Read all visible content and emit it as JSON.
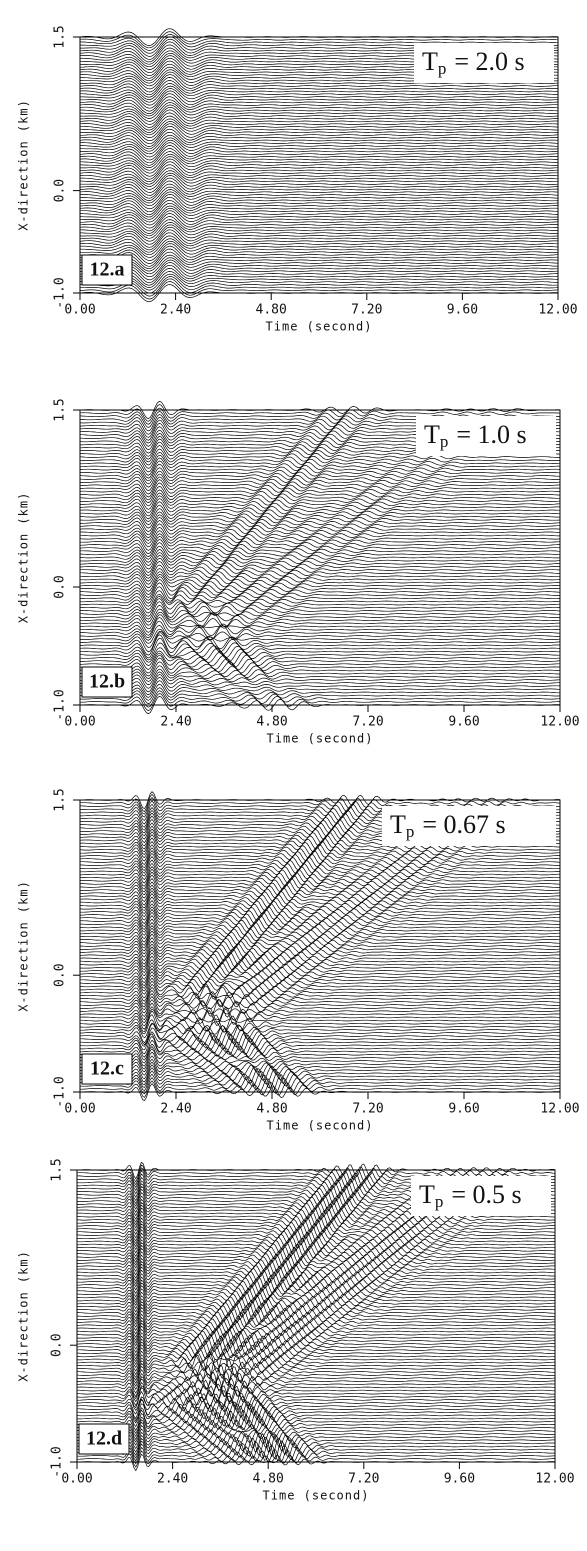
{
  "chart_data": [
    {
      "type": "seismogram",
      "panel_label": "12.a",
      "annotation_symbol": "T",
      "annotation_subscript": "p",
      "annotation_value": "= 2.0 s",
      "xlabel": "Time (second)",
      "ylabel": "X-direction (km)",
      "xlim": [
        0,
        12
      ],
      "ylim": [
        -1.0,
        1.5
      ],
      "xticks": [
        {
          "value": 0,
          "label": "0.00"
        },
        {
          "value": 2.4,
          "label": "2.40"
        },
        {
          "value": 4.8,
          "label": "4.80"
        },
        {
          "value": 7.2,
          "label": "7.20"
        },
        {
          "value": 9.6,
          "label": "9.60"
        },
        {
          "value": 12,
          "label": "12.00"
        }
      ],
      "yticks": [
        {
          "value": -1.0,
          "label": "-1.0"
        },
        {
          "value": 0,
          "label": "0.0"
        },
        1.5
      ]
    },
    {
      "type": "seismogram",
      "panel_label": "12.b",
      "annotation_symbol": "T",
      "annotation_subscript": "p",
      "annotation_value": "= 1.0 s",
      "xlabel": "Time (second)",
      "ylabel": "X-direction (km)",
      "xlim": [
        0,
        12
      ],
      "ylim": [
        -1.0,
        1.5
      ],
      "xticks": [
        {
          "value": 0,
          "label": "0.00"
        },
        {
          "value": 2.4,
          "label": "2.40"
        },
        {
          "value": 4.8,
          "label": "4.80"
        },
        {
          "value": 7.2,
          "label": "7.20"
        },
        {
          "value": 9.6,
          "label": "9.60"
        },
        {
          "value": 12,
          "label": "12.00"
        }
      ],
      "yticks": [
        {
          "value": -1.0,
          "label": "-1.0"
        },
        {
          "value": 0,
          "label": "0.0"
        },
        1.5
      ]
    },
    {
      "type": "seismogram",
      "panel_label": "12.c",
      "annotation_symbol": "T",
      "annotation_subscript": "p",
      "annotation_value": "= 0.67 s",
      "xlabel": "Time (second)",
      "ylabel": "X-direction (km)",
      "xlim": [
        0,
        12
      ],
      "ylim": [
        -1.0,
        1.5
      ],
      "xticks": [
        {
          "value": 0,
          "label": "0.00"
        },
        {
          "value": 2.4,
          "label": "2.40"
        },
        {
          "value": 4.8,
          "label": "4.80"
        },
        {
          "value": 7.2,
          "label": "7.20"
        },
        {
          "value": 9.6,
          "label": "9.60"
        },
        {
          "value": 12,
          "label": "12.00"
        }
      ],
      "yticks": [
        {
          "value": -1.0,
          "label": "-1.0"
        },
        {
          "value": 0,
          "label": "0.0"
        },
        1.5
      ]
    },
    {
      "type": "seismogram",
      "panel_label": "12.d",
      "annotation_symbol": "T",
      "annotation_subscript": "p",
      "annotation_value": "= 0.5 s",
      "xlabel": "Time (second)",
      "ylabel": "X-direction (km)",
      "xlim": [
        0,
        12
      ],
      "ylim": [
        -1.0,
        1.5
      ],
      "xticks": [
        {
          "value": 0,
          "label": "0.00"
        },
        {
          "value": 2.4,
          "label": "2.40"
        },
        {
          "value": 4.8,
          "label": "4.80"
        },
        {
          "value": 7.2,
          "label": "7.20"
        },
        {
          "value": 9.6,
          "label": "9.60"
        },
        {
          "value": 12,
          "label": "12.00"
        }
      ],
      "yticks": [
        {
          "value": -1.0,
          "label": "-1.0"
        },
        {
          "value": 0,
          "label": "0.0"
        },
        1.5
      ]
    }
  ]
}
